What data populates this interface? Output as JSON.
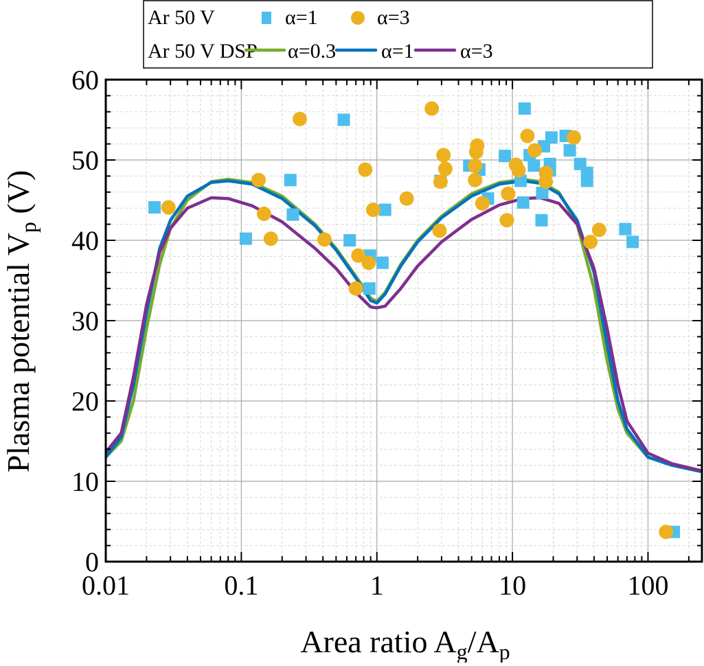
{
  "chart_data": {
    "type": "scatter",
    "xlabel": {
      "main": "Area ratio A",
      "sub1": "g",
      "mid": "/A",
      "sub2": "p"
    },
    "ylabel": {
      "main": "Plasma potential V",
      "sub": "p",
      "tail": " (V)"
    },
    "xscale": "log",
    "xlim": [
      0.01,
      250
    ],
    "ylim": [
      0,
      60
    ],
    "xticks": [
      "0.01",
      "0.1",
      "1",
      "10",
      "100"
    ],
    "yticks": [
      "0",
      "10",
      "20",
      "30",
      "40",
      "50",
      "60"
    ],
    "grid": true,
    "legend": {
      "placement": "top",
      "row1_label": "Ar 50 V",
      "row2_label": "Ar 50 V DSP"
    },
    "scatter_series": [
      {
        "name": "α=1",
        "marker": "square",
        "color": "#4dbeee",
        "points": [
          [
            0.0229,
            44.1
          ],
          [
            0.108,
            40.2
          ],
          [
            0.23,
            47.5
          ],
          [
            0.24,
            43.2
          ],
          [
            0.57,
            55.0
          ],
          [
            0.63,
            40.0
          ],
          [
            0.88,
            34.0
          ],
          [
            0.89,
            38.1
          ],
          [
            1.1,
            37.2
          ],
          [
            1.15,
            43.8
          ],
          [
            2.95,
            47.4
          ],
          [
            4.8,
            49.3
          ],
          [
            5.7,
            48.8
          ],
          [
            6.6,
            45.2
          ],
          [
            8.8,
            50.5
          ],
          [
            11.5,
            47.4
          ],
          [
            12.0,
            44.7
          ],
          [
            12.3,
            56.4
          ],
          [
            13.4,
            50.6
          ],
          [
            14.4,
            49.3
          ],
          [
            16.4,
            42.5
          ],
          [
            16.6,
            45.9
          ],
          [
            17.1,
            51.7
          ],
          [
            18.9,
            49.5
          ],
          [
            18.9,
            48.7
          ],
          [
            19.4,
            52.8
          ],
          [
            24.7,
            53.0
          ],
          [
            26.5,
            51.2
          ],
          [
            31.6,
            49.5
          ],
          [
            35.5,
            48.4
          ],
          [
            35.5,
            47.4
          ],
          [
            68,
            41.4
          ],
          [
            77,
            39.8
          ],
          [
            155,
            3.7
          ]
        ]
      },
      {
        "name": "α=3",
        "marker": "circle",
        "color": "#edb120",
        "points": [
          [
            0.029,
            44.1
          ],
          [
            0.134,
            47.5
          ],
          [
            0.147,
            43.3
          ],
          [
            0.165,
            40.2
          ],
          [
            0.27,
            55.1
          ],
          [
            0.41,
            40.1
          ],
          [
            0.7,
            34.0
          ],
          [
            0.73,
            38.1
          ],
          [
            0.82,
            48.8
          ],
          [
            0.87,
            37.2
          ],
          [
            0.94,
            43.8
          ],
          [
            1.66,
            45.2
          ],
          [
            2.54,
            56.4
          ],
          [
            2.9,
            41.2
          ],
          [
            2.95,
            47.3
          ],
          [
            3.1,
            50.6
          ],
          [
            3.2,
            48.9
          ],
          [
            5.3,
            49.3
          ],
          [
            5.3,
            47.5
          ],
          [
            5.4,
            51.0
          ],
          [
            5.5,
            51.8
          ],
          [
            6.0,
            44.6
          ],
          [
            9.1,
            42.5
          ],
          [
            9.3,
            45.8
          ],
          [
            10.6,
            49.4
          ],
          [
            11.1,
            48.7
          ],
          [
            12.9,
            53.0
          ],
          [
            14.6,
            51.2
          ],
          [
            17.6,
            47.3
          ],
          [
            17.7,
            48.4
          ],
          [
            28.4,
            52.8
          ],
          [
            37.6,
            39.8
          ],
          [
            43.6,
            41.3
          ],
          [
            136,
            3.7
          ]
        ]
      }
    ],
    "line_series": [
      {
        "name": "α=0.3",
        "color": "#77ac30",
        "x": [
          0.01,
          0.013,
          0.016,
          0.02,
          0.025,
          0.03,
          0.04,
          0.06,
          0.08,
          0.12,
          0.2,
          0.35,
          0.5,
          0.7,
          0.9,
          1.0,
          1.15,
          1.5,
          2,
          3,
          5,
          8,
          12,
          16,
          22,
          30,
          40,
          50,
          60,
          70,
          100,
          150,
          250
        ],
        "y": [
          13,
          15,
          20,
          29,
          37,
          41.5,
          45,
          47.3,
          47.6,
          47.2,
          45.5,
          42,
          39,
          35.5,
          32.8,
          32.4,
          33.5,
          37,
          40,
          43,
          45.8,
          47.2,
          47.6,
          47.3,
          46,
          42,
          34,
          25,
          19,
          16,
          13,
          12,
          11.2
        ]
      },
      {
        "name": "α=1",
        "color": "#0072bd",
        "x": [
          0.01,
          0.013,
          0.016,
          0.02,
          0.025,
          0.03,
          0.04,
          0.06,
          0.08,
          0.12,
          0.2,
          0.35,
          0.5,
          0.7,
          0.9,
          1.0,
          1.15,
          1.5,
          2,
          3,
          5,
          8,
          12,
          16,
          22,
          30,
          40,
          50,
          60,
          70,
          100,
          150,
          250
        ],
        "y": [
          13,
          15.5,
          22,
          31,
          39,
          42.5,
          45.5,
          47.2,
          47.4,
          47,
          45.2,
          41.8,
          38.8,
          35.3,
          32.5,
          32.2,
          33.3,
          36.8,
          39.8,
          42.8,
          45.5,
          47,
          47.4,
          47.1,
          45.8,
          42.5,
          36,
          27,
          20,
          16.5,
          13,
          12,
          11.2
        ]
      },
      {
        "name": "α=3",
        "color": "#7e2f8e",
        "x": [
          0.01,
          0.013,
          0.016,
          0.02,
          0.025,
          0.03,
          0.04,
          0.06,
          0.08,
          0.12,
          0.2,
          0.35,
          0.5,
          0.7,
          0.9,
          1.0,
          1.15,
          1.5,
          2,
          3,
          5,
          8,
          12,
          16,
          22,
          30,
          40,
          50,
          60,
          70,
          100,
          150,
          250
        ],
        "y": [
          13.6,
          16,
          23,
          32,
          38.5,
          41.5,
          44,
          45.3,
          45.2,
          44.3,
          42.3,
          39,
          36.5,
          33.5,
          31.7,
          31.6,
          31.8,
          34,
          36.8,
          39.8,
          42.6,
          44.4,
          45.2,
          45.3,
          44.6,
          42,
          36.5,
          29,
          22,
          17.5,
          13.5,
          12.2,
          11.3
        ]
      }
    ]
  }
}
